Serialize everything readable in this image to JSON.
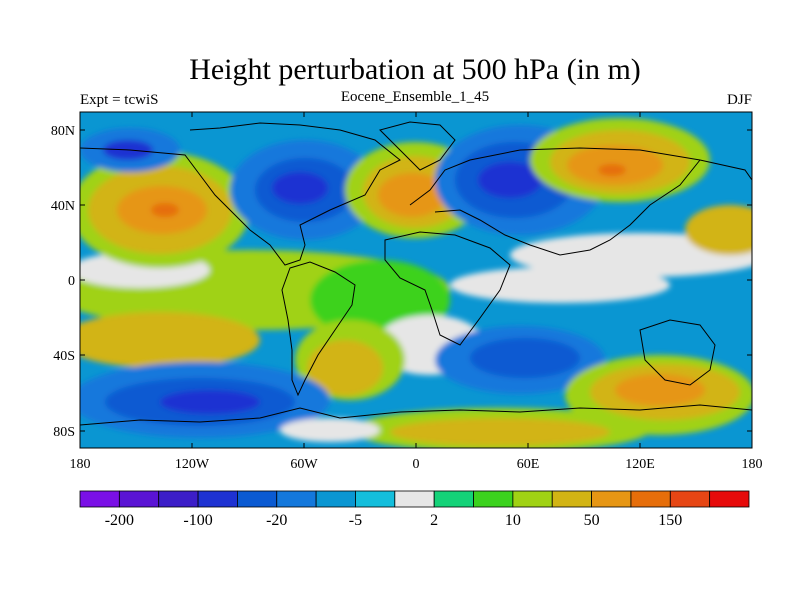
{
  "title": "Height perturbation at 500 hPa (in m)",
  "left_string": "Expt = tcwiS",
  "center_string": "Eocene_Ensemble_1_45",
  "right_string": "DJF",
  "lat_ticks": [
    "80N",
    "40N",
    "0",
    "40S",
    "80S"
  ],
  "lon_ticks": [
    "180",
    "120W",
    "60W",
    "0",
    "60E",
    "120E",
    "180"
  ],
  "colorbar": {
    "colors": [
      "#7a10e6",
      "#5a14d4",
      "#3c1ec8",
      "#1e32d2",
      "#0a5ad2",
      "#1478dc",
      "#0a96d2",
      "#14bedc",
      "#e6e6e6",
      "#14d278",
      "#3cd21e",
      "#a0d214",
      "#d2b414",
      "#e69614",
      "#e66e0a",
      "#e64614",
      "#e60a0a"
    ],
    "labels": [
      "-200",
      "-100",
      "-20",
      "-5",
      "2",
      "10",
      "50",
      "150"
    ]
  }
}
